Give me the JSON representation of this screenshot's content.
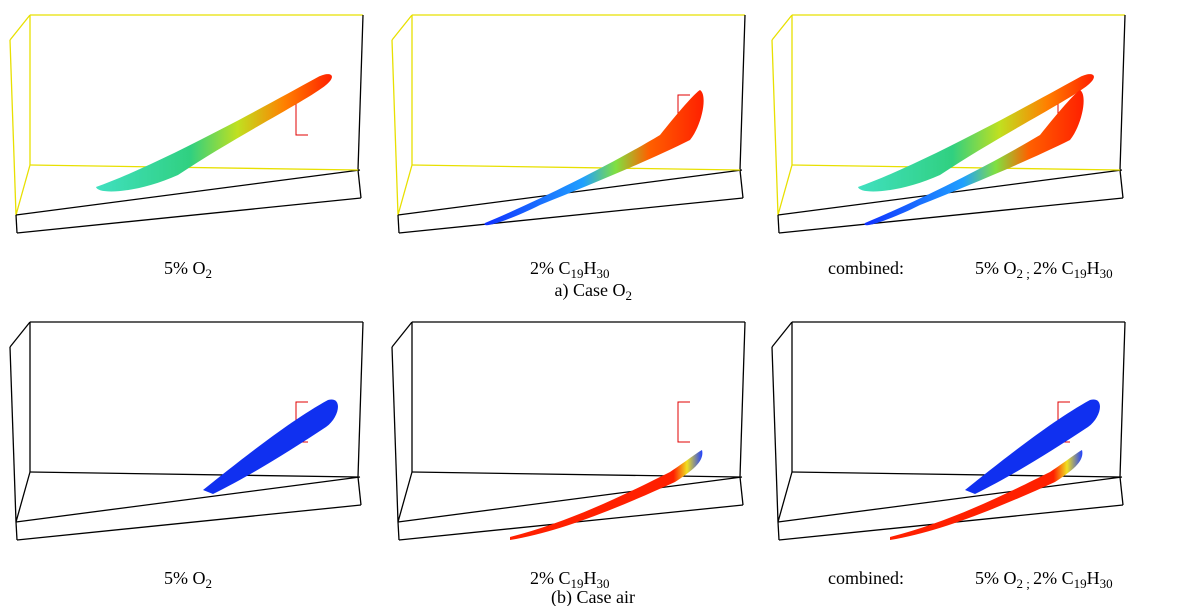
{
  "figure": {
    "rows": [
      {
        "panels": [
          {
            "caption": [
              {
                "text": "5% O"
              },
              {
                "sub": "2"
              }
            ]
          },
          {
            "caption": [
              {
                "text": "2% C"
              },
              {
                "sub": "19"
              },
              {
                "text": "H"
              },
              {
                "sub": "30"
              }
            ]
          },
          {
            "label": "combined:",
            "caption": [
              {
                "text": "5% O"
              },
              {
                "sub": "2"
              },
              {
                "sub": " ; "
              },
              {
                "text": "2% C"
              },
              {
                "sub": "19"
              },
              {
                "text": "H"
              },
              {
                "sub": "30"
              }
            ]
          }
        ],
        "caption": [
          {
            "text": "a) Case O"
          },
          {
            "sub": "2"
          }
        ]
      },
      {
        "panels": [
          {
            "caption": [
              {
                "text": "5% O"
              },
              {
                "sub": "2"
              }
            ]
          },
          {
            "caption": [
              {
                "text": "2% C"
              },
              {
                "sub": "19"
              },
              {
                "text": "H"
              },
              {
                "sub": "30"
              }
            ]
          },
          {
            "label": "combined:",
            "caption": [
              {
                "text": "5% O"
              },
              {
                "sub": "2"
              },
              {
                "sub": " ; "
              },
              {
                "text": "2% C"
              },
              {
                "sub": "19"
              },
              {
                "text": "H"
              },
              {
                "sub": "30"
              }
            ]
          }
        ],
        "caption": [
          {
            "text": "(b) Case air"
          }
        ]
      }
    ]
  }
}
